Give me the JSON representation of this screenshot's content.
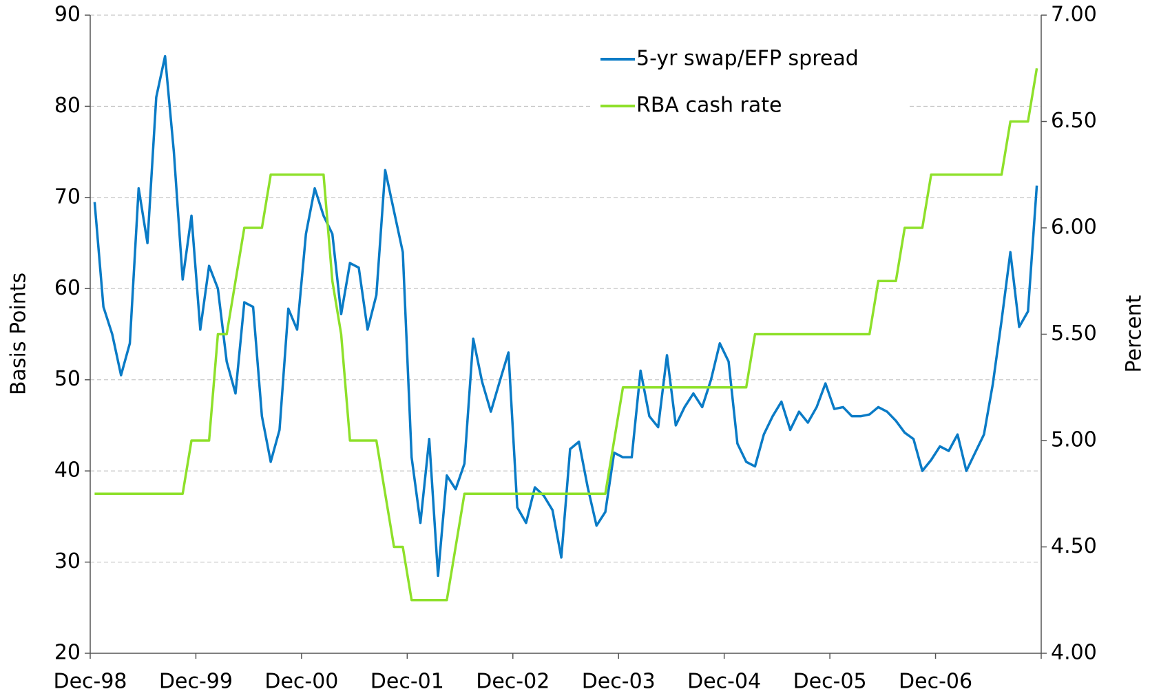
{
  "chart_data": {
    "type": "line",
    "y_label": "Basis Points",
    "y2_label": "Percent",
    "categories": [
      "Dec-98",
      null,
      null,
      null,
      null,
      null,
      null,
      null,
      null,
      null,
      null,
      null,
      "Dec-99",
      null,
      null,
      null,
      null,
      null,
      null,
      null,
      null,
      null,
      null,
      null,
      "Dec-00",
      null,
      null,
      null,
      null,
      null,
      null,
      null,
      null,
      null,
      null,
      null,
      "Dec-01",
      null,
      null,
      null,
      null,
      null,
      null,
      null,
      null,
      null,
      null,
      null,
      "Dec-02",
      null,
      null,
      null,
      null,
      null,
      null,
      null,
      null,
      null,
      null,
      null,
      "Dec-03",
      null,
      null,
      null,
      null,
      null,
      null,
      null,
      null,
      null,
      null,
      null,
      "Dec-04",
      null,
      null,
      null,
      null,
      null,
      null,
      null,
      null,
      null,
      null,
      null,
      "Dec-05",
      null,
      null,
      null,
      null,
      null,
      null,
      null,
      null,
      null,
      null,
      null,
      "Dec-06",
      null,
      null,
      null,
      null,
      null,
      null,
      null,
      null,
      null,
      null,
      null
    ],
    "series": [
      {
        "name": "5-yr swap/EFP spread",
        "color": "#0a7bc6",
        "axis": "y",
        "values": [
          69.5,
          58,
          55,
          50.5,
          54,
          71,
          65,
          81,
          85.5,
          75,
          61,
          68,
          55.5,
          62.5,
          60,
          52,
          48.5,
          58.5,
          58,
          46,
          41,
          44.5,
          57.8,
          55.5,
          66,
          71,
          68,
          66,
          57.2,
          62.8,
          62.3,
          55.5,
          59.3,
          73,
          68.5,
          64,
          41.5,
          34.3,
          43.5,
          28.5,
          39.5,
          38,
          40.8,
          54.5,
          49.8,
          46.5,
          49.8,
          53,
          36,
          34.3,
          38.2,
          37.3,
          35.7,
          30.5,
          42.4,
          43.2,
          38.2,
          34,
          35.5,
          42,
          41.5,
          41.5,
          51,
          46,
          44.8,
          52.7,
          45,
          47,
          48.5,
          47,
          50,
          54,
          52,
          43,
          41,
          40.5,
          44,
          46,
          47.6,
          44.5,
          46.5,
          45.3,
          47,
          49.6,
          46.8,
          47,
          46,
          46,
          46.2,
          47,
          46.5,
          45.5,
          44.2,
          43.5,
          40,
          41.2,
          42.7,
          42.2,
          44,
          40,
          42,
          44,
          49.5,
          56.5,
          64,
          55.8,
          57.5,
          71.3
        ]
      },
      {
        "name": "RBA cash rate",
        "color": "#8ee02a",
        "axis": "y2",
        "values": [
          4.75,
          4.75,
          4.75,
          4.75,
          4.75,
          4.75,
          4.75,
          4.75,
          4.75,
          4.75,
          4.75,
          5,
          5,
          5,
          5.5,
          5.5,
          5.75,
          6,
          6,
          6,
          6.25,
          6.25,
          6.25,
          6.25,
          6.25,
          6.25,
          6.25,
          5.75,
          5.5,
          5,
          5,
          5,
          5,
          4.75,
          4.5,
          4.5,
          4.25,
          4.25,
          4.25,
          4.25,
          4.25,
          4.5,
          4.75,
          4.75,
          4.75,
          4.75,
          4.75,
          4.75,
          4.75,
          4.75,
          4.75,
          4.75,
          4.75,
          4.75,
          4.75,
          4.75,
          4.75,
          4.75,
          4.75,
          5,
          5.25,
          5.25,
          5.25,
          5.25,
          5.25,
          5.25,
          5.25,
          5.25,
          5.25,
          5.25,
          5.25,
          5.25,
          5.25,
          5.25,
          5.25,
          5.5,
          5.5,
          5.5,
          5.5,
          5.5,
          5.5,
          5.5,
          5.5,
          5.5,
          5.5,
          5.5,
          5.5,
          5.5,
          5.5,
          5.75,
          5.75,
          5.75,
          6,
          6,
          6,
          6.25,
          6.25,
          6.25,
          6.25,
          6.25,
          6.25,
          6.25,
          6.25,
          6.25,
          6.5,
          6.5,
          6.5,
          6.75
        ]
      }
    ],
    "ylim": [
      20,
      90
    ],
    "yticks": [
      20,
      30,
      40,
      50,
      60,
      70,
      80,
      90
    ],
    "y2lim": [
      4,
      7
    ],
    "y2ticks": [
      {
        "value": 4,
        "label": "4.00"
      },
      {
        "value": 4.5,
        "label": "4.50"
      },
      {
        "value": 5,
        "label": "5.00"
      },
      {
        "value": 5.5,
        "label": "5.50"
      },
      {
        "value": 6,
        "label": "6.00"
      },
      {
        "value": 6.5,
        "label": "6.50"
      },
      {
        "value": 7,
        "label": "7.00"
      }
    ],
    "grid": true,
    "legend": "top"
  }
}
